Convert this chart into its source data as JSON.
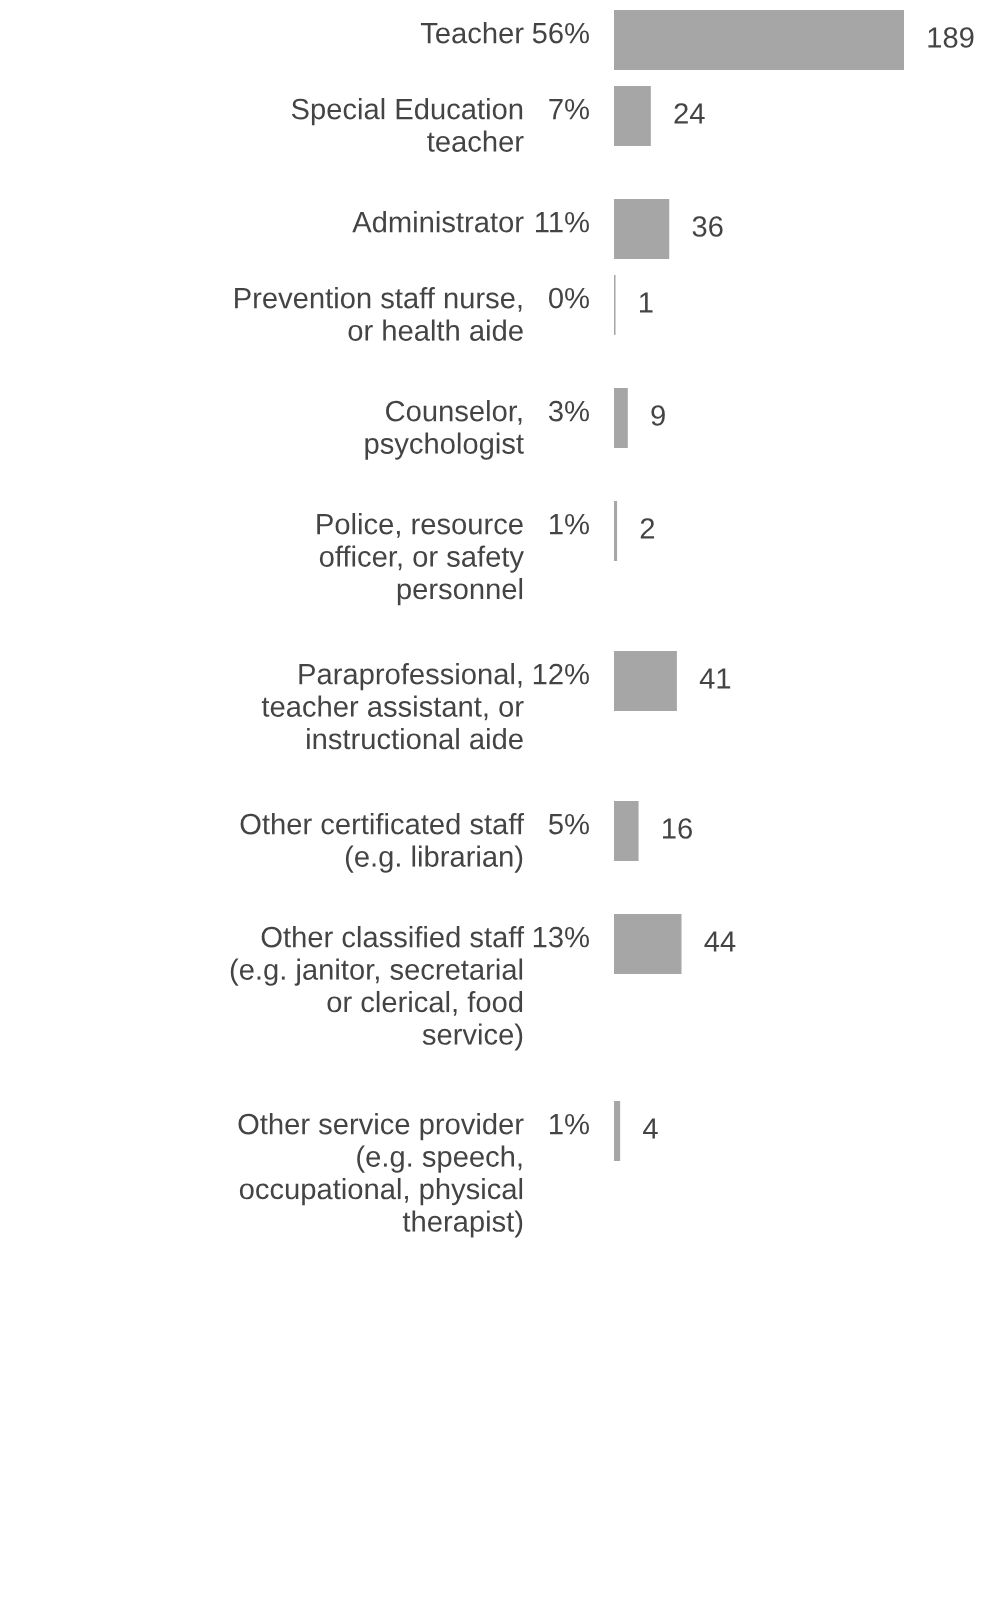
{
  "chart_data": {
    "type": "bar",
    "orientation": "horizontal",
    "data_labels": true,
    "categories": [
      "Teacher",
      "Special Education\nteacher",
      "Administrator",
      "Prevention staff nurse,\nor health aide",
      "Counselor,\npsychologist",
      "Police, resource\nofficer, or safety\npersonnel",
      "Paraprofessional,\nteacher assistant, or\ninstructional aide",
      "Other certificated staff\n(e.g. librarian)",
      "Other classified staff\n(e.g. janitor, secretarial\nor clerical, food\nservice)",
      "Other service provider\n(e.g. speech,\noccupational, physical\ntherapist)"
    ],
    "values": [
      189,
      24,
      36,
      1,
      9,
      2,
      41,
      16,
      44,
      4
    ],
    "color": "#a6a6a6",
    "annotations": [
      "56%",
      "7%",
      "11%",
      "0%",
      "3%",
      "1%",
      "12%",
      "5%",
      "13%",
      "1%"
    ]
  }
}
